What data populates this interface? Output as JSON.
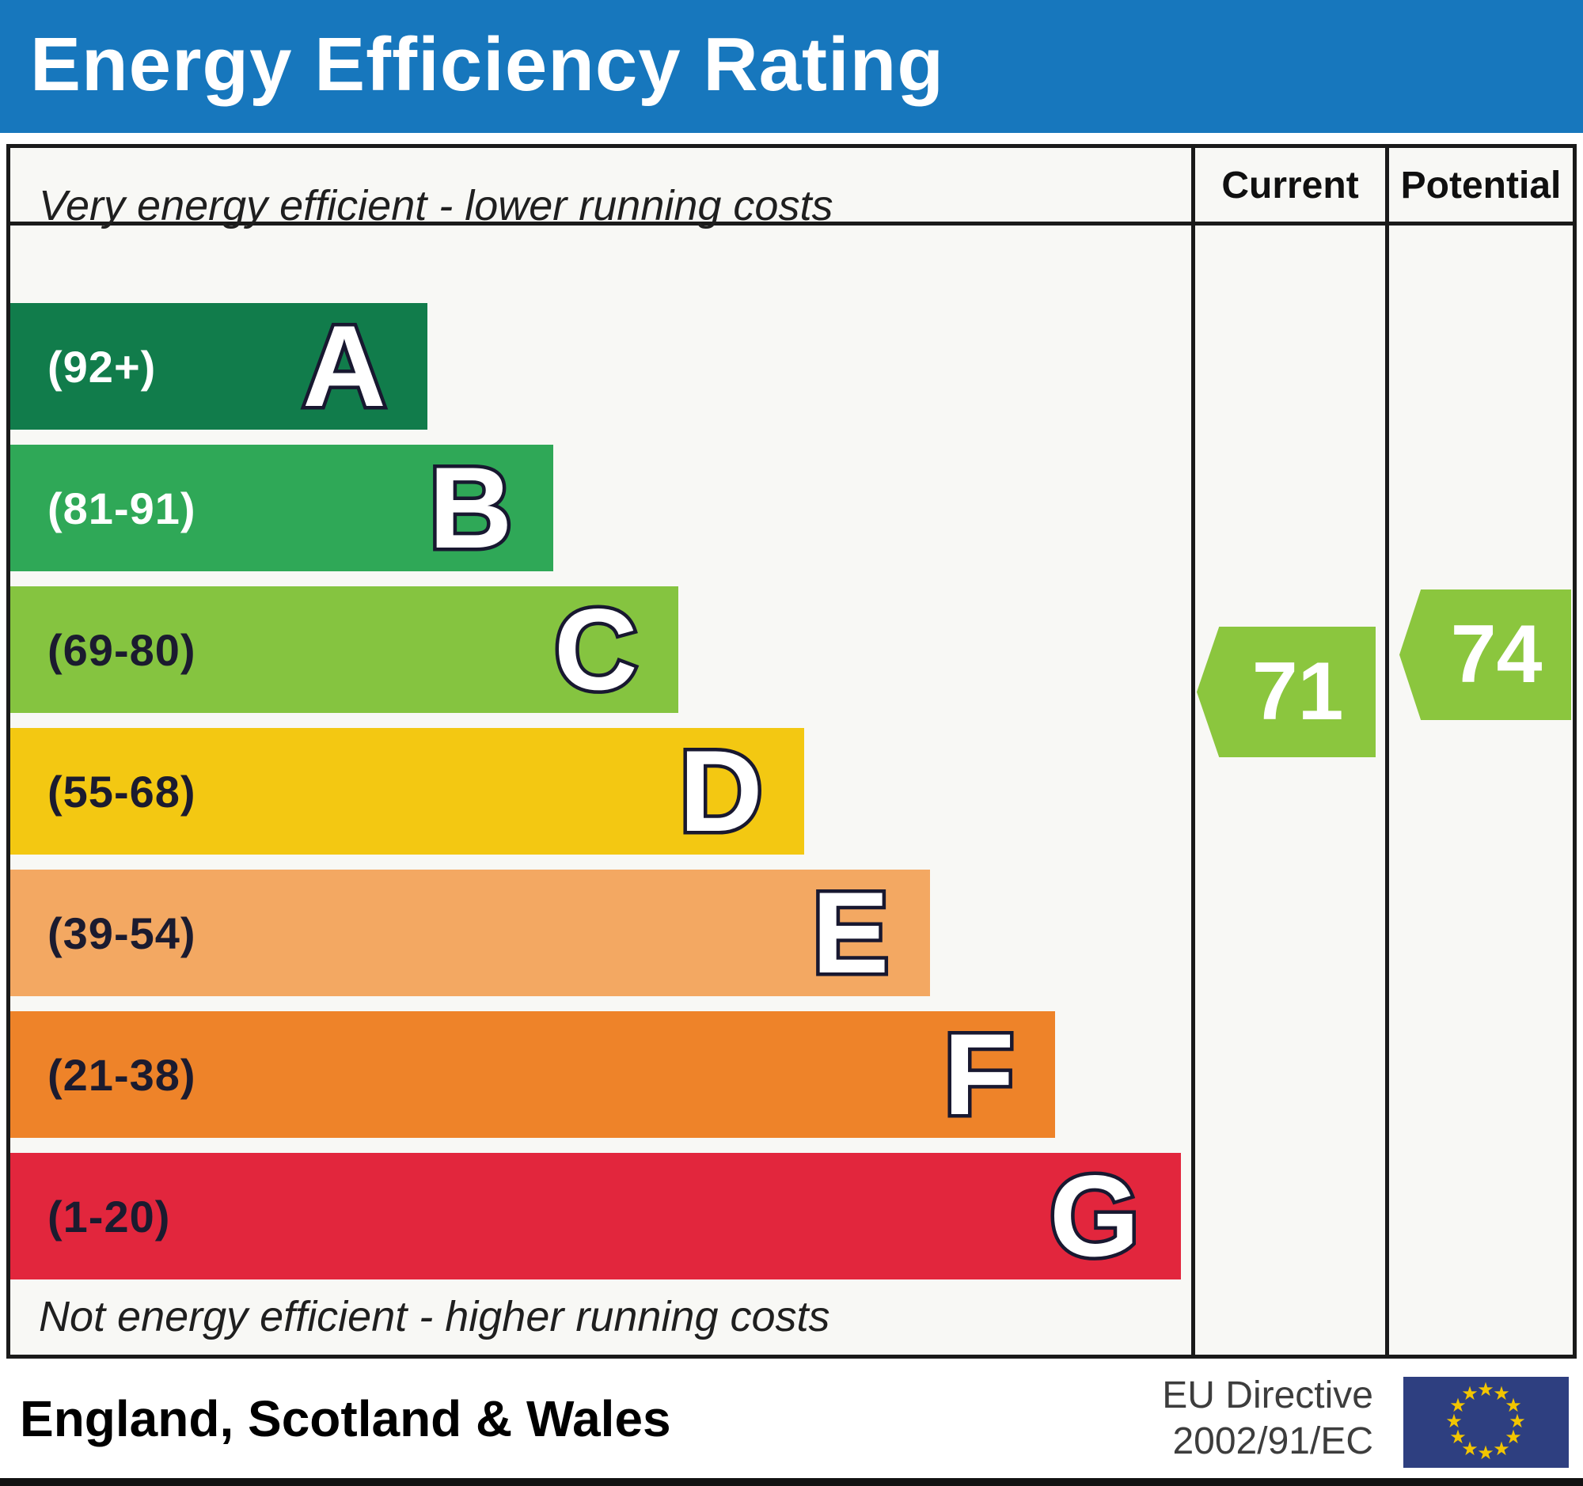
{
  "title_bar": {
    "title": "Energy Efficiency Rating"
  },
  "header": {
    "current_label": "Current",
    "potential_label": "Potential"
  },
  "notes": {
    "top": "Very energy efficient - lower running costs",
    "bottom": "Not energy efficient - higher running costs"
  },
  "bands": [
    {
      "letter": "A",
      "range": "(92+)",
      "color": "#117c4b",
      "label_color": "#ffffff",
      "width_pct": 35.3
    },
    {
      "letter": "B",
      "range": "(81-91)",
      "color": "#2fa857",
      "label_color": "#ffffff",
      "width_pct": 46.0
    },
    {
      "letter": "C",
      "range": "(69-80)",
      "color": "#85c440",
      "label_color": "#1b1b2f",
      "width_pct": 56.6
    },
    {
      "letter": "D",
      "range": "(55-68)",
      "color": "#f3c812",
      "label_color": "#1b1b2f",
      "width_pct": 67.2
    },
    {
      "letter": "E",
      "range": "(39-54)",
      "color": "#f3a862",
      "label_color": "#1b1b2f",
      "width_pct": 77.9
    },
    {
      "letter": "F",
      "range": "(21-38)",
      "color": "#ee8329",
      "label_color": "#1b1b2f",
      "width_pct": 88.5
    },
    {
      "letter": "G",
      "range": "(1-20)",
      "color": "#e2263d",
      "label_color": "#1b1b2f",
      "width_pct": 99.1
    }
  ],
  "ratings": {
    "current": {
      "value": "71",
      "color": "#8bc63e"
    },
    "potential": {
      "value": "74",
      "color": "#8bc63e"
    }
  },
  "footer": {
    "region": "England, Scotland & Wales",
    "directive": [
      "EU Directive",
      "2002/91/EC"
    ]
  },
  "colors": {
    "title_bar_bg": "#1777bd",
    "chart_bg": "#f8f8f5",
    "border": "#1a1a1a",
    "flag_bg": "#2e3f80",
    "flag_star": "#f2c500"
  },
  "chart_data": {
    "type": "bar",
    "title": "Energy Efficiency Rating",
    "categories": [
      "A",
      "B",
      "C",
      "D",
      "E",
      "F",
      "G"
    ],
    "band_ranges": [
      "92+",
      "81-91",
      "69-80",
      "55-68",
      "39-54",
      "21-38",
      "1-20"
    ],
    "band_colors": [
      "#117c4b",
      "#2fa857",
      "#85c440",
      "#f3c812",
      "#f3a862",
      "#ee8329",
      "#e2263d"
    ],
    "bar_length_pct": [
      35.3,
      46.0,
      56.6,
      67.2,
      77.9,
      88.5,
      99.1
    ],
    "series": [
      {
        "name": "Current",
        "value": 71,
        "band": "C"
      },
      {
        "name": "Potential",
        "value": 74,
        "band": "C"
      }
    ],
    "annotations": [
      "Very energy efficient - lower running costs",
      "Not energy efficient - higher running costs"
    ],
    "region": "England, Scotland & Wales",
    "directive": "EU Directive 2002/91/EC",
    "legend_position": "top-right-columns",
    "grid": false
  }
}
